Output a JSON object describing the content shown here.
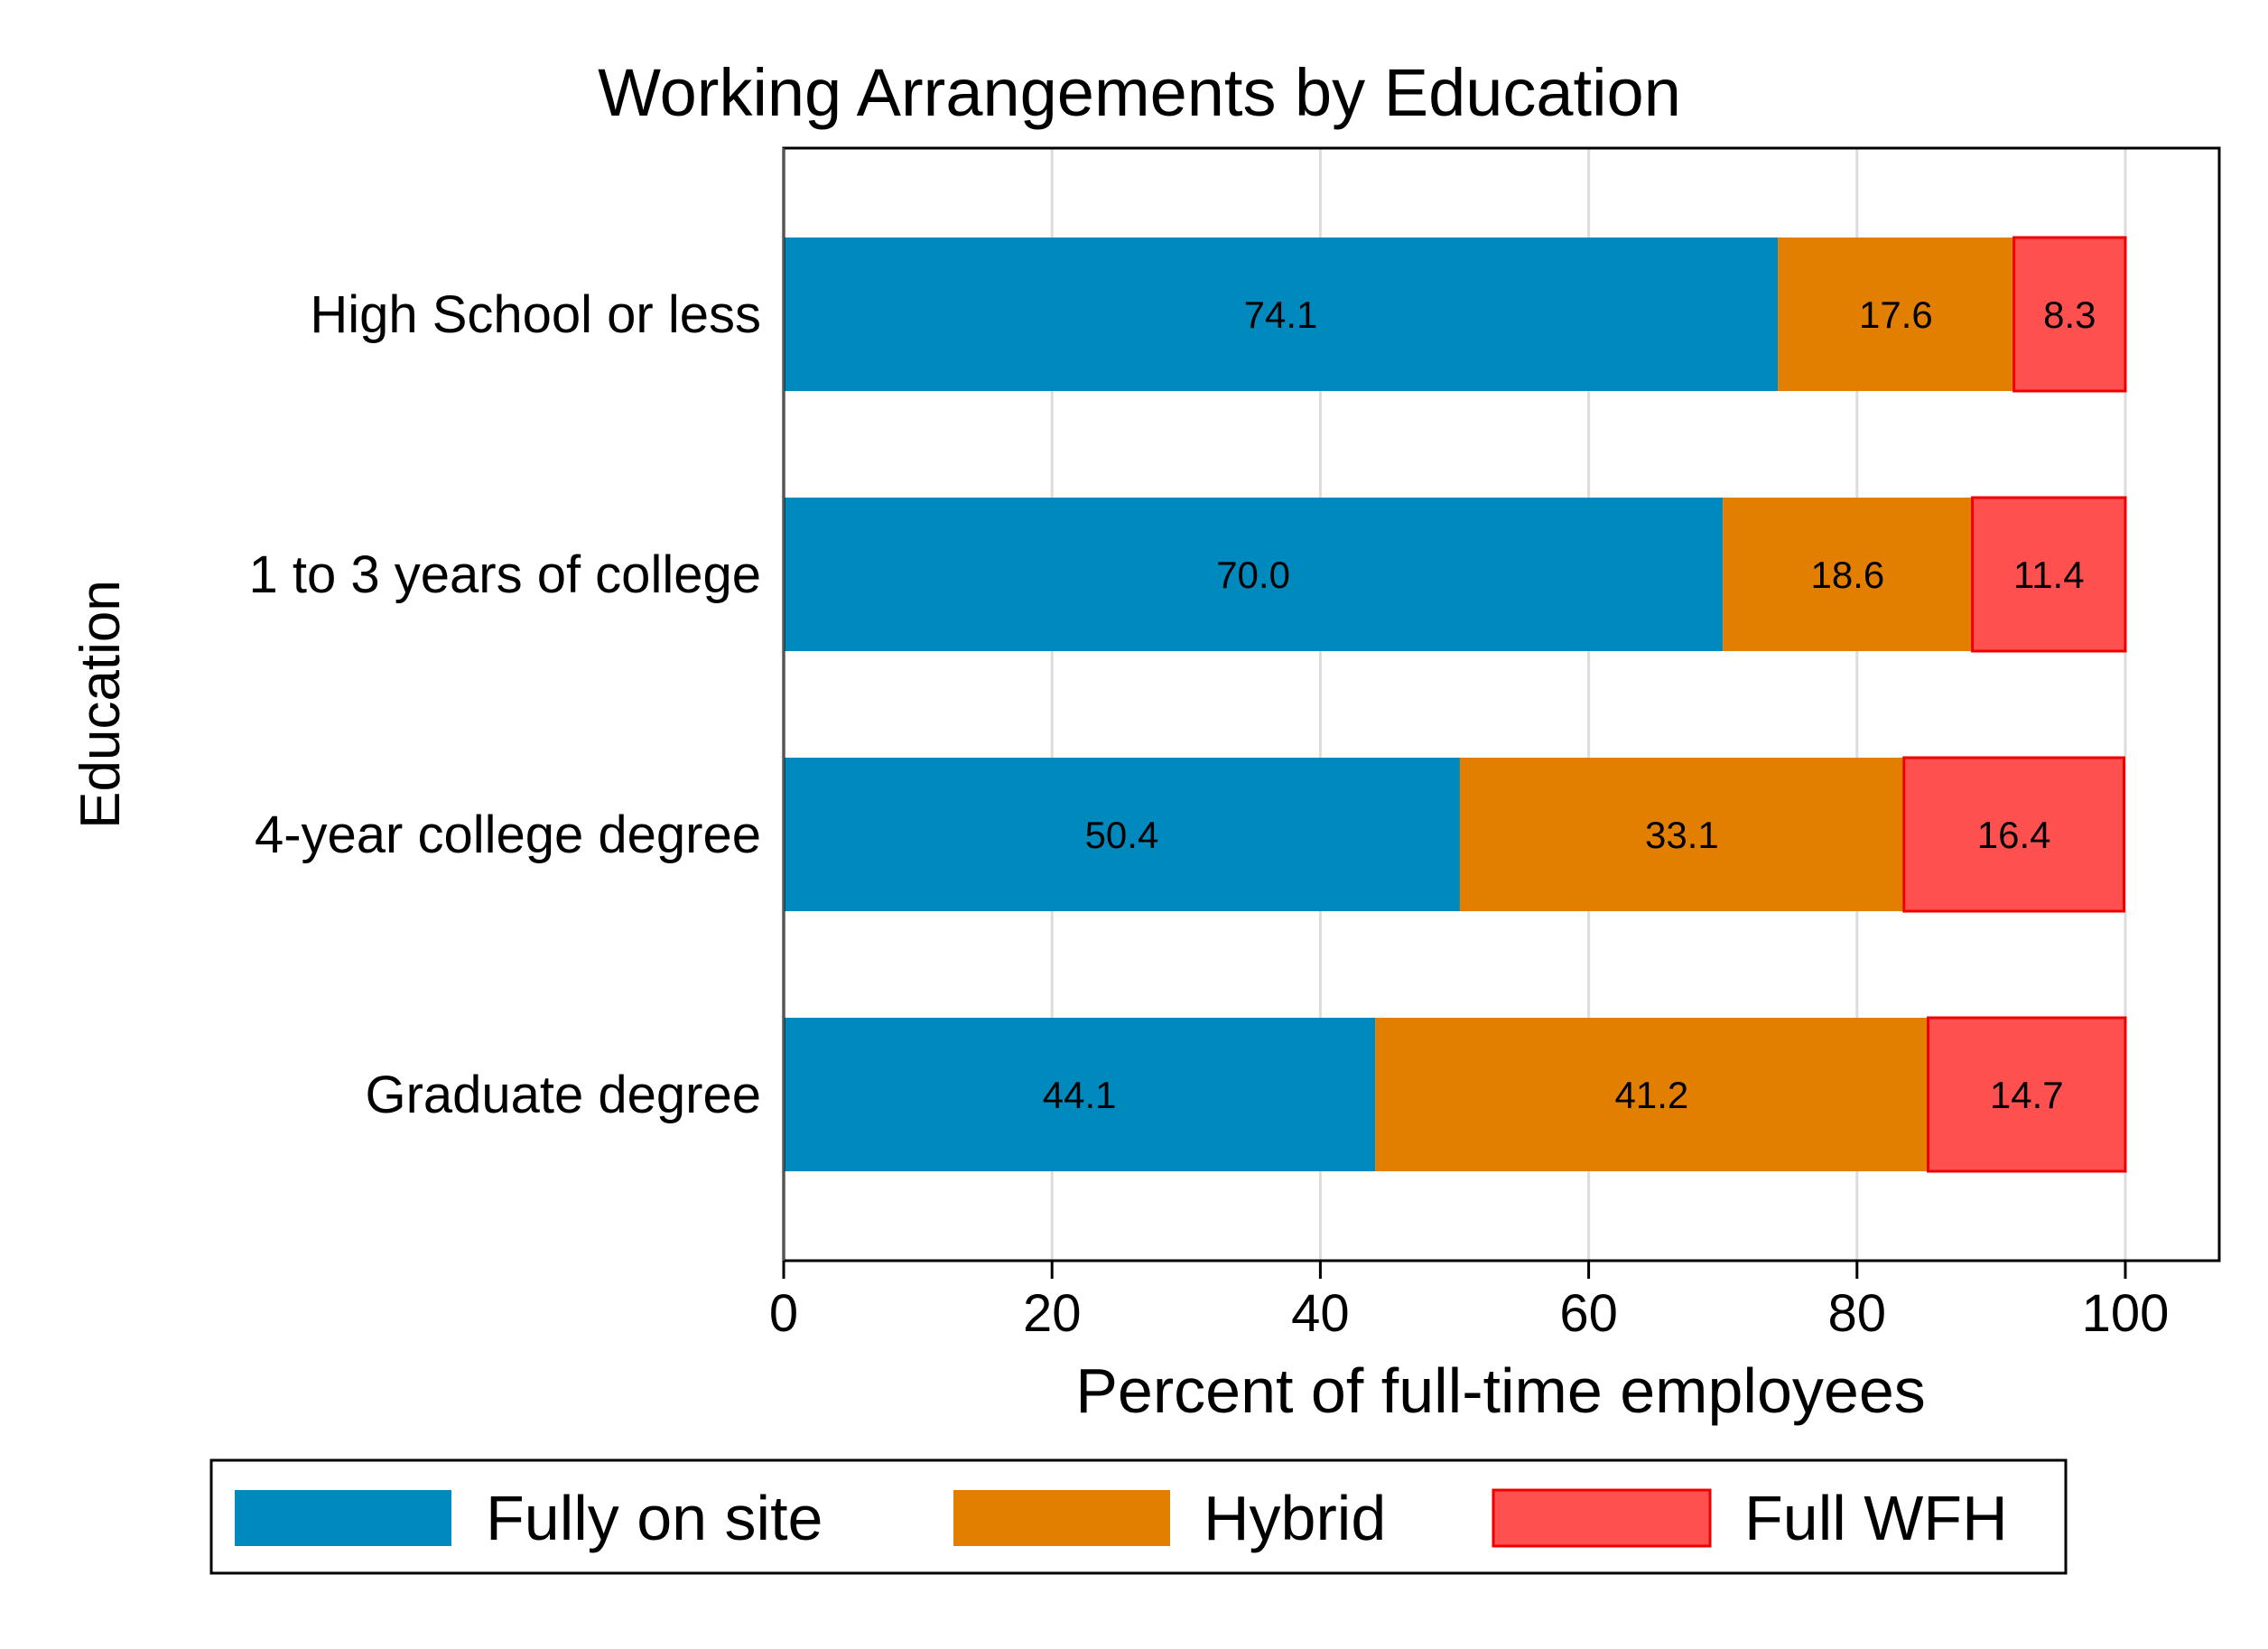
{
  "chart_data": {
    "type": "bar",
    "orientation": "horizontal",
    "stacked": true,
    "title": "Working Arrangements by Education",
    "xlabel": "Percent of full-time employees",
    "ylabel": "Education",
    "xlim": [
      0,
      107
    ],
    "xticks": [
      0,
      20,
      40,
      60,
      80,
      100
    ],
    "grid": true,
    "legend_position": "bottom",
    "categories": [
      "High School or less",
      "1 to 3 years of college",
      "4-year college degree",
      "Graduate degree"
    ],
    "series": [
      {
        "name": "Fully on site",
        "color": "#0089BD",
        "values": [
          74.1,
          70.0,
          50.4,
          44.1
        ],
        "labels": [
          "74.1",
          "70.0",
          "50.4",
          "44.1"
        ]
      },
      {
        "name": "Hybrid",
        "color": "#E27F00",
        "values": [
          17.6,
          18.6,
          33.1,
          41.2
        ],
        "labels": [
          "17.6",
          "18.6",
          "33.1",
          "41.2"
        ]
      },
      {
        "name": "Full WFH",
        "color": "#FF5050",
        "stroke": "#EE0000",
        "values": [
          8.3,
          11.4,
          16.4,
          14.7
        ],
        "labels": [
          "8.3",
          "11.4",
          "16.4",
          "14.7"
        ]
      }
    ]
  }
}
